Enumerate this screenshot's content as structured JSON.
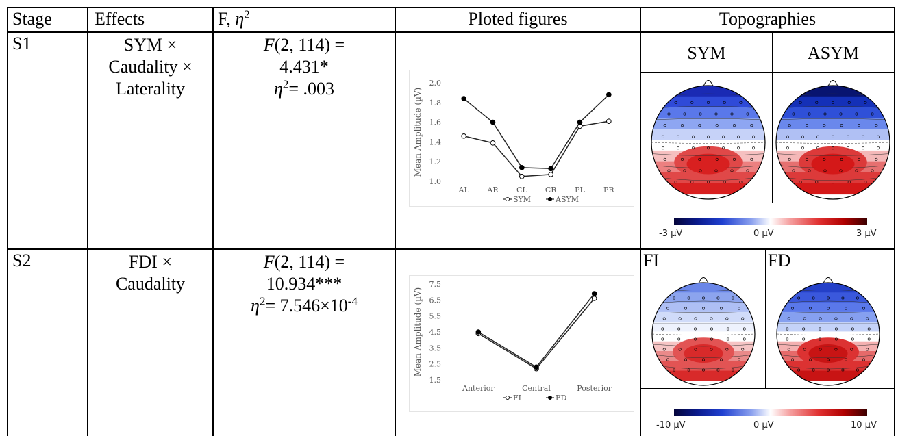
{
  "header": {
    "stage": "Stage",
    "effects": "Effects",
    "f_eta_prefix": "F, ",
    "eta": "η",
    "eta_sup": "2",
    "plotted": "Ploted figures",
    "topographies": "Topographies"
  },
  "rows": [
    {
      "stage": "S1",
      "effects_lines": [
        "SYM ×",
        "Caudality ×",
        "Laterality"
      ],
      "f_line1_F": "F",
      "f_line1_rest": "(2, 114) =",
      "f_line2": "4.431*",
      "eta_sym": "η",
      "eta_sup": "2",
      "eta_value": "= .003",
      "topo_labels": [
        "SYM",
        "ASYM"
      ],
      "colorbar": {
        "min": "-3 µV",
        "mid": "0 µV",
        "max": "3 µV"
      }
    },
    {
      "stage": "S2",
      "effects_lines": [
        "FDI ×",
        "Caudality"
      ],
      "f_line1_F": "F",
      "f_line1_rest": "(2, 114) =",
      "f_line2": "10.934***",
      "eta_sym": "η",
      "eta_sup": "2",
      "eta_value": "= 7.546×10",
      "eta_exp": "-4",
      "topo_labels": [
        "FI",
        "FD"
      ],
      "colorbar": {
        "min": "-10 µV",
        "mid": "0 µV",
        "max": "10 µV"
      }
    }
  ],
  "chart_data": [
    {
      "type": "line",
      "ylabel": "Mean Amplitude (µV)",
      "categories": [
        "AL",
        "AR",
        "CL",
        "CR",
        "PL",
        "PR"
      ],
      "ylim": [
        1.0,
        2.0
      ],
      "yticks": [
        "2.0",
        "1.8",
        "1.6",
        "1.4",
        "1.2",
        "1.0"
      ],
      "series": [
        {
          "name": "SYM",
          "marker": "open",
          "values": [
            1.46,
            1.39,
            1.05,
            1.07,
            1.56,
            1.61
          ]
        },
        {
          "name": "ASYM",
          "marker": "filled",
          "values": [
            1.84,
            1.6,
            1.14,
            1.13,
            1.6,
            1.88
          ]
        }
      ],
      "legend": "bottom",
      "grid": false
    },
    {
      "type": "line",
      "ylabel": "Mean Amplitude (µV)",
      "categories": [
        "Anterior",
        "Central",
        "Posterior"
      ],
      "ylim": [
        1.5,
        7.5
      ],
      "yticks": [
        "7.5",
        "6.5",
        "5.5",
        "4.5",
        "3.5",
        "2.5",
        "1.5"
      ],
      "series": [
        {
          "name": "FI",
          "marker": "open",
          "values": [
            4.4,
            2.2,
            6.6
          ]
        },
        {
          "name": "FD",
          "marker": "filled",
          "values": [
            4.5,
            2.3,
            6.9
          ]
        }
      ],
      "legend": "bottom",
      "grid": false
    }
  ],
  "colors": {
    "line": "#262626",
    "blue_dark": "#0a1a8c",
    "red_dark": "#c80000"
  }
}
